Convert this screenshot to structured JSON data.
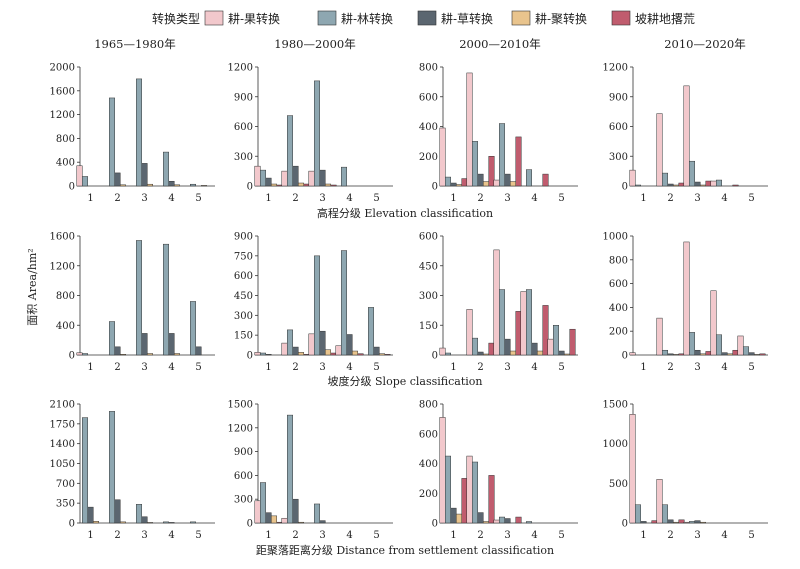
{
  "legend": {
    "title": "转换类型",
    "items": [
      {
        "label": "耕-果转换",
        "color": "#f2c8cc"
      },
      {
        "label": "耕-林转换",
        "color": "#8ea7b1"
      },
      {
        "label": "耕-草转换",
        "color": "#5b6670"
      },
      {
        "label": "耕-聚转换",
        "color": "#e9c48d"
      },
      {
        "label": "坡耕地撂荒",
        "color": "#c05c6e"
      }
    ]
  },
  "column_titles": [
    "1965—1980年",
    "1980—2000年",
    "2000—2010年",
    "2010—2020年"
  ],
  "row_titles": [
    "高程分级 Elevation classification",
    "坡度分级 Slope classification",
    "距聚落距离分级 Distance from settlement classification"
  ],
  "y_axis_label": "面积 Area/hm²",
  "chart_data": [
    {
      "type": "bar",
      "categories": [
        "1",
        "2",
        "3",
        "4",
        "5"
      ],
      "ylim": [
        0,
        2000
      ],
      "yticks": [
        0,
        400,
        800,
        1200,
        1600,
        2000
      ],
      "series": [
        {
          "values": [
            340,
            0,
            0,
            0,
            0
          ]
        },
        {
          "values": [
            160,
            1480,
            1800,
            570,
            30
          ]
        },
        {
          "values": [
            0,
            220,
            380,
            80,
            0
          ]
        },
        {
          "values": [
            0,
            20,
            30,
            20,
            10
          ]
        },
        {
          "values": [
            0,
            0,
            0,
            0,
            0
          ]
        }
      ]
    },
    {
      "type": "bar",
      "categories": [
        "1",
        "2",
        "3",
        "4",
        "5"
      ],
      "ylim": [
        0,
        1200
      ],
      "yticks": [
        0,
        300,
        600,
        900,
        1200
      ],
      "series": [
        {
          "values": [
            200,
            150,
            150,
            0,
            0
          ]
        },
        {
          "values": [
            160,
            710,
            1060,
            190,
            0
          ]
        },
        {
          "values": [
            80,
            200,
            160,
            0,
            0
          ]
        },
        {
          "values": [
            20,
            30,
            20,
            0,
            0
          ]
        },
        {
          "values": [
            10,
            20,
            10,
            0,
            0
          ]
        }
      ]
    },
    {
      "type": "bar",
      "categories": [
        "1",
        "2",
        "3",
        "4",
        "5"
      ],
      "ylim": [
        0,
        800
      ],
      "yticks": [
        0,
        200,
        400,
        600,
        800
      ],
      "series": [
        {
          "values": [
            390,
            760,
            40,
            0,
            0
          ]
        },
        {
          "values": [
            60,
            300,
            420,
            110,
            0
          ]
        },
        {
          "values": [
            20,
            80,
            80,
            0,
            0
          ]
        },
        {
          "values": [
            10,
            30,
            30,
            0,
            0
          ]
        },
        {
          "values": [
            50,
            200,
            330,
            80,
            0
          ]
        }
      ]
    },
    {
      "type": "bar",
      "categories": [
        "1",
        "2",
        "3",
        "4",
        "5"
      ],
      "ylim": [
        0,
        1200
      ],
      "yticks": [
        0,
        300,
        600,
        900,
        1200
      ],
      "series": [
        {
          "values": [
            160,
            730,
            1010,
            50,
            0
          ]
        },
        {
          "values": [
            10,
            130,
            250,
            60,
            0
          ]
        },
        {
          "values": [
            0,
            20,
            40,
            0,
            0
          ]
        },
        {
          "values": [
            0,
            10,
            10,
            0,
            0
          ]
        },
        {
          "values": [
            0,
            30,
            50,
            10,
            0
          ]
        }
      ]
    },
    {
      "type": "bar",
      "categories": [
        "1",
        "2",
        "3",
        "4",
        "5"
      ],
      "ylim": [
        0,
        1600
      ],
      "yticks": [
        0,
        400,
        800,
        1200,
        1600
      ],
      "series": [
        {
          "values": [
            30,
            0,
            0,
            0,
            0
          ]
        },
        {
          "values": [
            20,
            450,
            1540,
            1490,
            720
          ]
        },
        {
          "values": [
            0,
            110,
            290,
            290,
            110
          ]
        },
        {
          "values": [
            0,
            10,
            20,
            20,
            0
          ]
        },
        {
          "values": [
            0,
            0,
            0,
            0,
            0
          ]
        }
      ]
    },
    {
      "type": "bar",
      "categories": [
        "1",
        "2",
        "3",
        "4",
        "5"
      ],
      "ylim": [
        0,
        900
      ],
      "yticks": [
        0,
        150,
        300,
        450,
        600,
        750,
        900
      ],
      "series": [
        {
          "values": [
            20,
            90,
            160,
            70,
            0
          ]
        },
        {
          "values": [
            15,
            190,
            750,
            790,
            360
          ]
        },
        {
          "values": [
            5,
            60,
            180,
            155,
            60
          ]
        },
        {
          "values": [
            0,
            20,
            40,
            30,
            10
          ]
        },
        {
          "values": [
            0,
            5,
            15,
            10,
            5
          ]
        }
      ]
    },
    {
      "type": "bar",
      "categories": [
        "1",
        "2",
        "3",
        "4",
        "5"
      ],
      "ylim": [
        0,
        600
      ],
      "yticks": [
        0,
        150,
        300,
        450,
        600
      ],
      "series": [
        {
          "values": [
            35,
            230,
            530,
            320,
            80
          ]
        },
        {
          "values": [
            10,
            85,
            330,
            330,
            150
          ]
        },
        {
          "values": [
            0,
            15,
            80,
            60,
            20
          ]
        },
        {
          "values": [
            0,
            5,
            20,
            20,
            5
          ]
        },
        {
          "values": [
            0,
            60,
            220,
            250,
            130
          ]
        }
      ]
    },
    {
      "type": "bar",
      "categories": [
        "1",
        "2",
        "3",
        "4",
        "5"
      ],
      "ylim": [
        0,
        1000
      ],
      "yticks": [
        0,
        200,
        400,
        600,
        800,
        1000
      ],
      "series": [
        {
          "values": [
            20,
            310,
            950,
            540,
            160
          ]
        },
        {
          "values": [
            0,
            40,
            190,
            170,
            70
          ]
        },
        {
          "values": [
            0,
            10,
            40,
            20,
            20
          ]
        },
        {
          "values": [
            0,
            5,
            10,
            10,
            5
          ]
        },
        {
          "values": [
            0,
            10,
            30,
            40,
            10
          ]
        }
      ]
    },
    {
      "type": "bar",
      "categories": [
        "1",
        "2",
        "3",
        "4",
        "5"
      ],
      "ylim": [
        0,
        2100
      ],
      "yticks": [
        0,
        350,
        700,
        1050,
        1400,
        1750,
        2100
      ],
      "series": [
        {
          "values": [
            0,
            0,
            0,
            0,
            0
          ]
        },
        {
          "values": [
            1860,
            1970,
            330,
            20,
            20
          ]
        },
        {
          "values": [
            280,
            410,
            110,
            10,
            0
          ]
        },
        {
          "values": [
            30,
            20,
            10,
            0,
            0
          ]
        },
        {
          "values": [
            0,
            0,
            0,
            0,
            0
          ]
        }
      ]
    },
    {
      "type": "bar",
      "categories": [
        "1",
        "2",
        "3",
        "4",
        "5"
      ],
      "ylim": [
        0,
        1500
      ],
      "yticks": [
        0,
        300,
        600,
        900,
        1200,
        1500
      ],
      "series": [
        {
          "values": [
            280,
            60,
            0,
            0,
            0
          ]
        },
        {
          "values": [
            510,
            1360,
            240,
            0,
            0
          ]
        },
        {
          "values": [
            130,
            300,
            30,
            0,
            0
          ]
        },
        {
          "values": [
            90,
            10,
            0,
            0,
            0
          ]
        },
        {
          "values": [
            10,
            0,
            0,
            0,
            0
          ]
        }
      ]
    },
    {
      "type": "bar",
      "categories": [
        "1",
        "2",
        "3",
        "4",
        "5"
      ],
      "ylim": [
        0,
        800
      ],
      "yticks": [
        0,
        200,
        400,
        600,
        800
      ],
      "series": [
        {
          "values": [
            710,
            450,
            20,
            0,
            0
          ]
        },
        {
          "values": [
            450,
            410,
            40,
            10,
            0
          ]
        },
        {
          "values": [
            100,
            70,
            30,
            0,
            0
          ]
        },
        {
          "values": [
            60,
            10,
            0,
            0,
            0
          ]
        },
        {
          "values": [
            300,
            320,
            40,
            0,
            0
          ]
        }
      ]
    },
    {
      "type": "bar",
      "categories": [
        "1",
        "2",
        "3",
        "4",
        "5"
      ],
      "ylim": [
        0,
        1500
      ],
      "yticks": [
        0,
        500,
        1000,
        1500
      ],
      "series": [
        {
          "values": [
            1370,
            550,
            10,
            0,
            0
          ]
        },
        {
          "values": [
            230,
            230,
            20,
            0,
            0
          ]
        },
        {
          "values": [
            20,
            40,
            30,
            0,
            0
          ]
        },
        {
          "values": [
            0,
            10,
            10,
            0,
            0
          ]
        },
        {
          "values": [
            30,
            40,
            0,
            0,
            0
          ]
        }
      ]
    }
  ]
}
